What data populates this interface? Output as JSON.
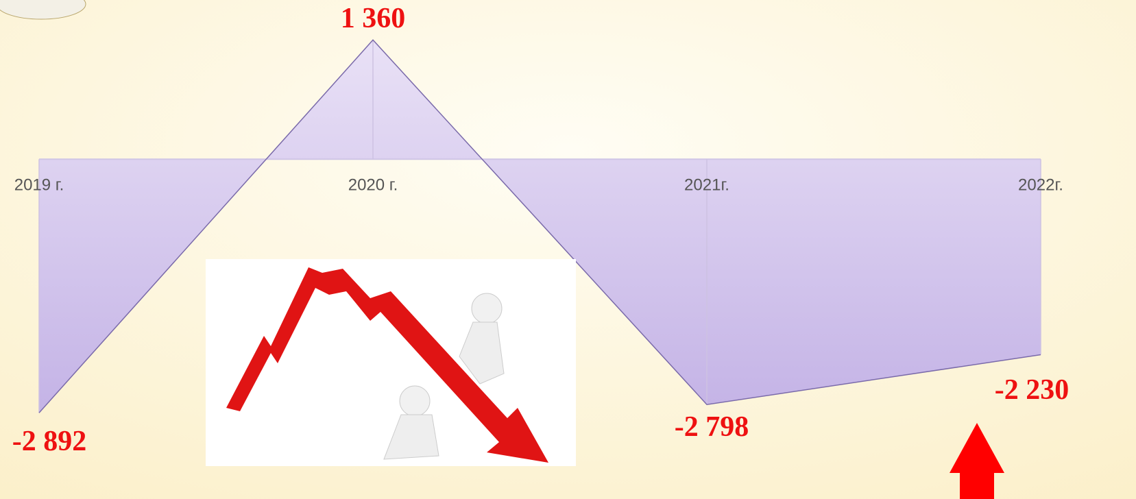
{
  "chart_data": {
    "type": "area",
    "categories": [
      "2019 г.",
      "2020 г.",
      "2021г.",
      "2022г."
    ],
    "values": [
      -2892,
      1360,
      -2798,
      -2230
    ],
    "value_labels": [
      "-2 892",
      "1 360",
      "-2 798",
      "-2 230"
    ],
    "color": "#7a6aaa",
    "label_color": "#ee1111",
    "ylim": [
      -3500,
      1800
    ]
  }
}
